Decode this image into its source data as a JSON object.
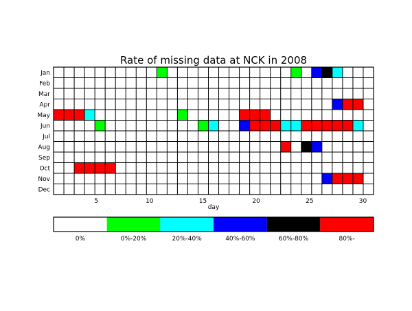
{
  "chart_data": {
    "type": "heatmap",
    "title": "Rate of missing data at NCK in 2008",
    "xlabel": "day",
    "ylabel": "",
    "xlim": [
      1,
      31
    ],
    "x_ticks": [
      5,
      10,
      15,
      20,
      25,
      30
    ],
    "rows": [
      "Jan",
      "Feb",
      "Mar",
      "Apr",
      "May",
      "Jun",
      "Jul",
      "Aug",
      "Sep",
      "Oct",
      "Nov",
      "Dec"
    ],
    "days_per_row": 31,
    "grid": true,
    "legend_position": "bottom",
    "colors": {
      "0": "#ffffff",
      "1": "#00ff00",
      "2": "#00ffff",
      "3": "#0000ff",
      "4": "#000000",
      "5": "#ff0000"
    },
    "categories": [
      "0%",
      "0%-20%",
      "20%-40%",
      "40%-60%",
      "60%-80%",
      "80%-"
    ],
    "cells": [
      {
        "month": "Jan",
        "day": 11,
        "category": 1
      },
      {
        "month": "Jan",
        "day": 24,
        "category": 1
      },
      {
        "month": "Jan",
        "day": 26,
        "category": 3
      },
      {
        "month": "Jan",
        "day": 27,
        "category": 4
      },
      {
        "month": "Jan",
        "day": 28,
        "category": 2
      },
      {
        "month": "Apr",
        "day": 28,
        "category": 3
      },
      {
        "month": "Apr",
        "day": 29,
        "category": 5
      },
      {
        "month": "Apr",
        "day": 30,
        "category": 5
      },
      {
        "month": "May",
        "day": 1,
        "category": 5
      },
      {
        "month": "May",
        "day": 2,
        "category": 5
      },
      {
        "month": "May",
        "day": 3,
        "category": 5
      },
      {
        "month": "May",
        "day": 4,
        "category": 2
      },
      {
        "month": "May",
        "day": 13,
        "category": 1
      },
      {
        "month": "May",
        "day": 19,
        "category": 5
      },
      {
        "month": "May",
        "day": 20,
        "category": 5
      },
      {
        "month": "May",
        "day": 21,
        "category": 5
      },
      {
        "month": "Jun",
        "day": 5,
        "category": 1
      },
      {
        "month": "Jun",
        "day": 15,
        "category": 1
      },
      {
        "month": "Jun",
        "day": 16,
        "category": 2
      },
      {
        "month": "Jun",
        "day": 19,
        "category": 3
      },
      {
        "month": "Jun",
        "day": 20,
        "category": 5
      },
      {
        "month": "Jun",
        "day": 21,
        "category": 5
      },
      {
        "month": "Jun",
        "day": 22,
        "category": 5
      },
      {
        "month": "Jun",
        "day": 23,
        "category": 2
      },
      {
        "month": "Jun",
        "day": 24,
        "category": 2
      },
      {
        "month": "Jun",
        "day": 25,
        "category": 5
      },
      {
        "month": "Jun",
        "day": 26,
        "category": 5
      },
      {
        "month": "Jun",
        "day": 27,
        "category": 5
      },
      {
        "month": "Jun",
        "day": 28,
        "category": 5
      },
      {
        "month": "Jun",
        "day": 29,
        "category": 5
      },
      {
        "month": "Jun",
        "day": 30,
        "category": 2
      },
      {
        "month": "Aug",
        "day": 23,
        "category": 5
      },
      {
        "month": "Aug",
        "day": 25,
        "category": 4
      },
      {
        "month": "Aug",
        "day": 26,
        "category": 3
      },
      {
        "month": "Oct",
        "day": 3,
        "category": 5
      },
      {
        "month": "Oct",
        "day": 4,
        "category": 5
      },
      {
        "month": "Oct",
        "day": 5,
        "category": 5
      },
      {
        "month": "Oct",
        "day": 6,
        "category": 5
      },
      {
        "month": "Nov",
        "day": 27,
        "category": 3
      },
      {
        "month": "Nov",
        "day": 28,
        "category": 5
      },
      {
        "month": "Nov",
        "day": 29,
        "category": 5
      },
      {
        "month": "Nov",
        "day": 30,
        "category": 5
      }
    ]
  }
}
